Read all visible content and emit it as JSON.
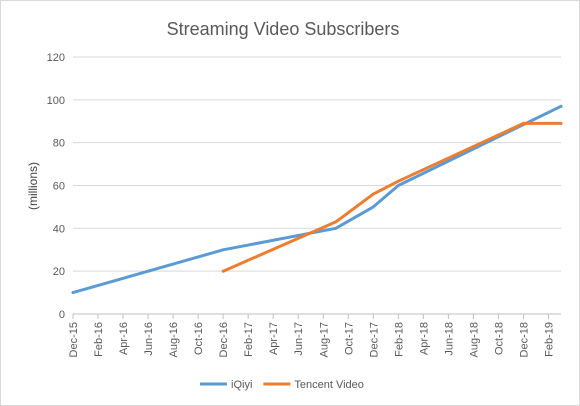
{
  "chart_data": {
    "type": "line",
    "title": "Streaming Video Subscribers",
    "xlabel": "",
    "ylabel": "(millions)",
    "ylim": [
      0,
      120
    ],
    "yticks": [
      0,
      20,
      40,
      60,
      80,
      100,
      120
    ],
    "grid": "horizontal",
    "legend": "bottom",
    "categories": [
      "Dec-15",
      "Feb-16",
      "Apr-16",
      "Jun-16",
      "Aug-16",
      "Oct-16",
      "Dec-16",
      "Feb-17",
      "Apr-17",
      "Jun-17",
      "Aug-17",
      "Oct-17",
      "Dec-17",
      "Feb-18",
      "Apr-18",
      "Jun-18",
      "Aug-18",
      "Oct-18",
      "Dec-18",
      "Feb-19"
    ],
    "x_range": [
      "Dec-15",
      "Mar-19"
    ],
    "series": [
      {
        "name": "iQiyi",
        "color": "#5b9bd5",
        "points": [
          {
            "x": "Dec-15",
            "y": 10
          },
          {
            "x": "Dec-16",
            "y": 30
          },
          {
            "x": "Sep-17",
            "y": 40
          },
          {
            "x": "Dec-17",
            "y": 50
          },
          {
            "x": "Feb-18",
            "y": 60
          },
          {
            "x": "Mar-19",
            "y": 97
          }
        ]
      },
      {
        "name": "Tencent Video",
        "color": "#ed7d31",
        "points": [
          {
            "x": "Dec-16",
            "y": 20
          },
          {
            "x": "Sep-17",
            "y": 43
          },
          {
            "x": "Dec-17",
            "y": 56
          },
          {
            "x": "Feb-18",
            "y": 62
          },
          {
            "x": "Dec-18",
            "y": 89
          },
          {
            "x": "Mar-19",
            "y": 89
          }
        ]
      }
    ]
  }
}
